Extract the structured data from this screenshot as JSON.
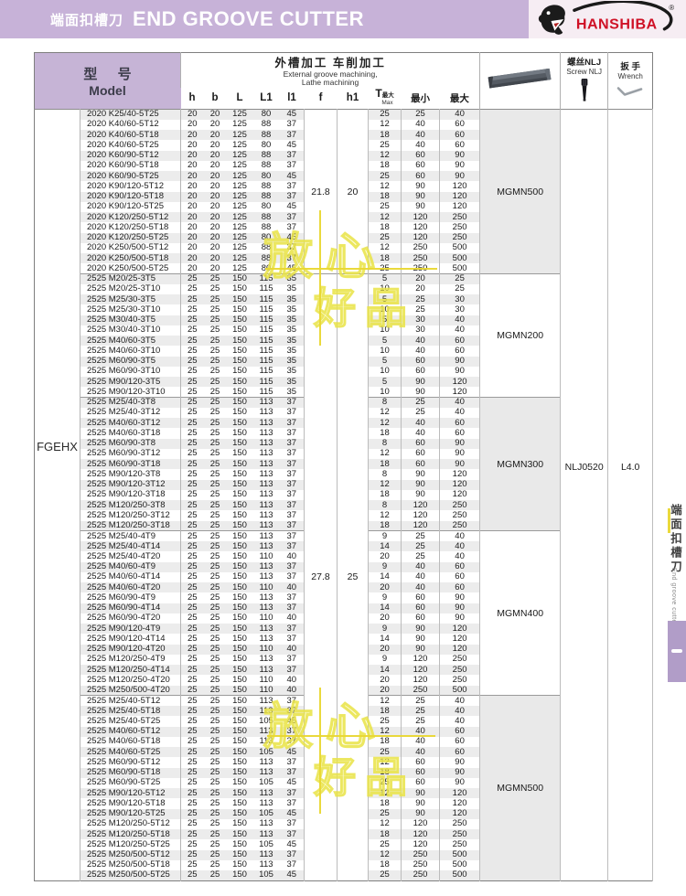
{
  "header": {
    "title_zh": "端面扣槽刀",
    "title_en": "END GROOVE CUTTER",
    "brand": "HANSHIBA",
    "registered": "®"
  },
  "sidebar": {
    "tab_zh": "端面扣槽刀",
    "tab_en": "End groove cutter"
  },
  "watermark": {
    "text1": "放心",
    "text2": "好品"
  },
  "colors": {
    "titlebar": "#c7b2d8",
    "model_header": "#c6b4d6",
    "row_stripe": "#ececec",
    "insert_cell_shade": "#e9e9e9",
    "brand_red": "#cf1126",
    "side_tab": "#b19dc8",
    "watermark_yellow": "#e9e346"
  },
  "table": {
    "header": {
      "model_zh": "型 号",
      "model_en": "Model",
      "group_zh": "外槽加工 车削加工",
      "group_en1": "External groove machining,",
      "group_en2": "Lathe machining",
      "dims": [
        "h",
        "b",
        "L",
        "L1",
        "l1",
        "f",
        "h1"
      ],
      "t_main": "T",
      "t_sub": "最大",
      "t_en": "Max",
      "min_zh": "最小",
      "max_zh": "最大",
      "screw_zh": "螺丝NLJ",
      "screw_en": "Screw NLJ",
      "wrench_zh": "扳 手",
      "wrench_en": "Wrench"
    },
    "series_label": "FGEHX",
    "screw_value": "NLJ0520",
    "wrench_value": "L4.0",
    "groups": [
      {
        "f": "21.8",
        "h1": "20",
        "blocks": [
          {
            "insert": "MGMN500",
            "rows": [
              [
                "2020 K25/40-5T25",
                20,
                20,
                125,
                80,
                45,
                25,
                25,
                40
              ],
              [
                "2020 K40/60-5T12",
                20,
                20,
                125,
                88,
                37,
                12,
                40,
                60
              ],
              [
                "2020 K40/60-5T18",
                20,
                20,
                125,
                88,
                37,
                18,
                40,
                60
              ],
              [
                "2020 K40/60-5T25",
                20,
                20,
                125,
                80,
                45,
                25,
                40,
                60
              ],
              [
                "2020 K60/90-5T12",
                20,
                20,
                125,
                88,
                37,
                12,
                60,
                90
              ],
              [
                "2020 K60/90-5T18",
                20,
                20,
                125,
                88,
                37,
                18,
                60,
                90
              ],
              [
                "2020 K60/90-5T25",
                20,
                20,
                125,
                80,
                45,
                25,
                60,
                90
              ],
              [
                "2020 K90/120-5T12",
                20,
                20,
                125,
                88,
                37,
                12,
                90,
                120
              ],
              [
                "2020 K90/120-5T18",
                20,
                20,
                125,
                88,
                37,
                18,
                90,
                120
              ],
              [
                "2020 K90/120-5T25",
                20,
                20,
                125,
                80,
                45,
                25,
                90,
                120
              ],
              [
                "2020 K120/250-5T12",
                20,
                20,
                125,
                88,
                37,
                12,
                120,
                250
              ],
              [
                "2020 K120/250-5T18",
                20,
                20,
                125,
                88,
                37,
                18,
                120,
                250
              ],
              [
                "2020 K120/250-5T25",
                20,
                20,
                125,
                80,
                45,
                25,
                120,
                250
              ],
              [
                "2020 K250/500-5T12",
                20,
                20,
                125,
                88,
                37,
                12,
                250,
                500
              ],
              [
                "2020 K250/500-5T18",
                20,
                20,
                125,
                88,
                37,
                18,
                250,
                500
              ],
              [
                "2020 K250/500-5T25",
                20,
                20,
                125,
                80,
                45,
                25,
                250,
                500
              ]
            ]
          }
        ]
      },
      {
        "f": "27.8",
        "h1": "25",
        "blocks": [
          {
            "insert": "MGMN200",
            "rows": [
              [
                "2525 M20/25-3T5",
                25,
                25,
                150,
                115,
                35,
                5,
                20,
                25
              ],
              [
                "2525 M20/25-3T10",
                25,
                25,
                150,
                115,
                35,
                10,
                20,
                25
              ],
              [
                "2525 M25/30-3T5",
                25,
                25,
                150,
                115,
                35,
                5,
                25,
                30
              ],
              [
                "2525 M25/30-3T10",
                25,
                25,
                150,
                115,
                35,
                10,
                25,
                30
              ],
              [
                "2525 M30/40-3T5",
                25,
                25,
                150,
                115,
                35,
                5,
                30,
                40
              ],
              [
                "2525 M30/40-3T10",
                25,
                25,
                150,
                115,
                35,
                10,
                30,
                40
              ],
              [
                "2525 M40/60-3T5",
                25,
                25,
                150,
                115,
                35,
                5,
                40,
                60
              ],
              [
                "2525 M40/60-3T10",
                25,
                25,
                150,
                115,
                35,
                10,
                40,
                60
              ],
              [
                "2525 M60/90-3T5",
                25,
                25,
                150,
                115,
                35,
                5,
                60,
                90
              ],
              [
                "2525 M60/90-3T10",
                25,
                25,
                150,
                115,
                35,
                10,
                60,
                90
              ],
              [
                "2525 M90/120-3T5",
                25,
                25,
                150,
                115,
                35,
                5,
                90,
                120
              ],
              [
                "2525 M90/120-3T10",
                25,
                25,
                150,
                115,
                35,
                10,
                90,
                120
              ]
            ]
          },
          {
            "insert": "MGMN300",
            "rows": [
              [
                "2525 M25/40-3T8",
                25,
                25,
                150,
                113,
                37,
                8,
                25,
                40
              ],
              [
                "2525 M25/40-3T12",
                25,
                25,
                150,
                113,
                37,
                12,
                25,
                40
              ],
              [
                "2525 M40/60-3T12",
                25,
                25,
                150,
                113,
                37,
                12,
                40,
                60
              ],
              [
                "2525 M40/60-3T18",
                25,
                25,
                150,
                113,
                37,
                18,
                40,
                60
              ],
              [
                "2525 M60/90-3T8",
                25,
                25,
                150,
                113,
                37,
                8,
                60,
                90
              ],
              [
                "2525 M60/90-3T12",
                25,
                25,
                150,
                113,
                37,
                12,
                60,
                90
              ],
              [
                "2525 M60/90-3T18",
                25,
                25,
                150,
                113,
                37,
                18,
                60,
                90
              ],
              [
                "2525 M90/120-3T8",
                25,
                25,
                150,
                113,
                37,
                8,
                90,
                120
              ],
              [
                "2525 M90/120-3T12",
                25,
                25,
                150,
                113,
                37,
                12,
                90,
                120
              ],
              [
                "2525 M90/120-3T18",
                25,
                25,
                150,
                113,
                37,
                18,
                90,
                120
              ],
              [
                "2525 M120/250-3T8",
                25,
                25,
                150,
                113,
                37,
                8,
                120,
                250
              ],
              [
                "2525 M120/250-3T12",
                25,
                25,
                150,
                113,
                37,
                12,
                120,
                250
              ],
              [
                "2525 M120/250-3T18",
                25,
                25,
                150,
                113,
                37,
                18,
                120,
                250
              ]
            ]
          },
          {
            "insert": "MGMN400",
            "rows": [
              [
                "2525 M25/40-4T9",
                25,
                25,
                150,
                113,
                37,
                9,
                25,
                40
              ],
              [
                "2525 M25/40-4T14",
                25,
                25,
                150,
                113,
                37,
                14,
                25,
                40
              ],
              [
                "2525 M25/40-4T20",
                25,
                25,
                150,
                110,
                40,
                20,
                25,
                40
              ],
              [
                "2525 M40/60-4T9",
                25,
                25,
                150,
                113,
                37,
                9,
                40,
                60
              ],
              [
                "2525 M40/60-4T14",
                25,
                25,
                150,
                113,
                37,
                14,
                40,
                60
              ],
              [
                "2525 M40/60-4T20",
                25,
                25,
                150,
                110,
                40,
                20,
                40,
                60
              ],
              [
                "2525 M60/90-4T9",
                25,
                25,
                150,
                113,
                37,
                9,
                60,
                90
              ],
              [
                "2525 M60/90-4T14",
                25,
                25,
                150,
                113,
                37,
                14,
                60,
                90
              ],
              [
                "2525 M60/90-4T20",
                25,
                25,
                150,
                110,
                40,
                20,
                60,
                90
              ],
              [
                "2525 M90/120-4T9",
                25,
                25,
                150,
                113,
                37,
                9,
                90,
                120
              ],
              [
                "2525 M90/120-4T14",
                25,
                25,
                150,
                113,
                37,
                14,
                90,
                120
              ],
              [
                "2525 M90/120-4T20",
                25,
                25,
                150,
                110,
                40,
                20,
                90,
                120
              ],
              [
                "2525 M120/250-4T9",
                25,
                25,
                150,
                113,
                37,
                9,
                120,
                250
              ],
              [
                "2525 M120/250-4T14",
                25,
                25,
                150,
                113,
                37,
                14,
                120,
                250
              ],
              [
                "2525 M120/250-4T20",
                25,
                25,
                150,
                110,
                40,
                20,
                120,
                250
              ],
              [
                "2525 M250/500-4T20",
                25,
                25,
                150,
                110,
                40,
                20,
                250,
                500
              ]
            ]
          },
          {
            "insert": "MGMN500",
            "rows": [
              [
                "2525 M25/40-5T12",
                25,
                25,
                150,
                113,
                37,
                12,
                25,
                40
              ],
              [
                "2525 M25/40-5T18",
                25,
                25,
                150,
                113,
                37,
                18,
                25,
                40
              ],
              [
                "2525 M25/40-5T25",
                25,
                25,
                150,
                105,
                45,
                25,
                25,
                40
              ],
              [
                "2525 M40/60-5T12",
                25,
                25,
                150,
                113,
                37,
                12,
                40,
                60
              ],
              [
                "2525 M40/60-5T18",
                25,
                25,
                150,
                113,
                37,
                18,
                40,
                60
              ],
              [
                "2525 M40/60-5T25",
                25,
                25,
                150,
                105,
                45,
                25,
                40,
                60
              ],
              [
                "2525 M60/90-5T12",
                25,
                25,
                150,
                113,
                37,
                12,
                60,
                90
              ],
              [
                "2525 M60/90-5T18",
                25,
                25,
                150,
                113,
                37,
                18,
                60,
                90
              ],
              [
                "2525 M60/90-5T25",
                25,
                25,
                150,
                105,
                45,
                25,
                60,
                90
              ],
              [
                "2525 M90/120-5T12",
                25,
                25,
                150,
                113,
                37,
                12,
                90,
                120
              ],
              [
                "2525 M90/120-5T18",
                25,
                25,
                150,
                113,
                37,
                18,
                90,
                120
              ],
              [
                "2525 M90/120-5T25",
                25,
                25,
                150,
                105,
                45,
                25,
                90,
                120
              ],
              [
                "2525 M120/250-5T12",
                25,
                25,
                150,
                113,
                37,
                12,
                120,
                250
              ],
              [
                "2525 M120/250-5T18",
                25,
                25,
                150,
                113,
                37,
                18,
                120,
                250
              ],
              [
                "2525 M120/250-5T25",
                25,
                25,
                150,
                105,
                45,
                25,
                120,
                250
              ],
              [
                "2525 M250/500-5T12",
                25,
                25,
                150,
                113,
                37,
                12,
                250,
                500
              ],
              [
                "2525 M250/500-5T18",
                25,
                25,
                150,
                113,
                37,
                18,
                250,
                500
              ],
              [
                "2525 M250/500-5T25",
                25,
                25,
                150,
                105,
                45,
                25,
                250,
                500
              ]
            ]
          }
        ]
      }
    ]
  }
}
